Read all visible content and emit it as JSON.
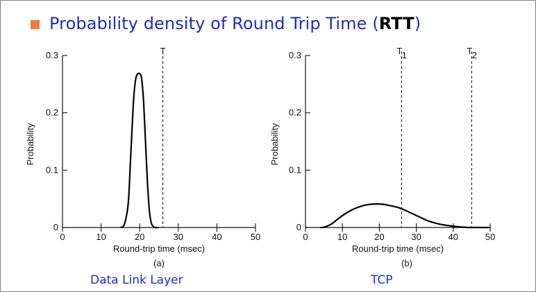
{
  "slide": {
    "title_prefix": "Probability density of Round Trip Time (",
    "title_bold": "RTT",
    "title_suffix": ")",
    "bullet_color": "#f07a3c",
    "title_color": "#1f2dbf"
  },
  "captions": {
    "left": "Data Link Layer",
    "right": "TCP"
  },
  "chart_data": [
    {
      "type": "line",
      "panel_label": "(a)",
      "xlabel": "Round-trip time (msec)",
      "ylabel": "Probability",
      "xlim": [
        0,
        50
      ],
      "ylim": [
        0,
        0.3
      ],
      "xticks": [
        0,
        10,
        20,
        30,
        40,
        50
      ],
      "yticks": [
        0,
        0.1,
        0.2,
        0.3
      ],
      "ytick_labels": [
        "0",
        "0.1",
        "0.2",
        "0.3"
      ],
      "grid": false,
      "series": [
        {
          "x": [
            15,
            16,
            17,
            17.5,
            18,
            18.5,
            19,
            19.5,
            20,
            20.5,
            21,
            21.5,
            22,
            22.5,
            23,
            23.5,
            24,
            25
          ],
          "y": [
            0,
            0.005,
            0.04,
            0.1,
            0.17,
            0.23,
            0.26,
            0.268,
            0.268,
            0.26,
            0.22,
            0.15,
            0.08,
            0.03,
            0.008,
            0.002,
            0,
            0
          ]
        }
      ],
      "reference_lines": [
        {
          "x": 26,
          "label": "T",
          "subscript": ""
        }
      ]
    },
    {
      "type": "line",
      "panel_label": "(b)",
      "xlabel": "Round-trip time (msec)",
      "ylabel": "Probability",
      "xlim": [
        0,
        50
      ],
      "ylim": [
        0,
        0.3
      ],
      "xticks": [
        0,
        10,
        20,
        30,
        40,
        50
      ],
      "yticks": [
        0,
        0.1,
        0.2,
        0.3
      ],
      "ytick_labels": [
        "0",
        "0.1",
        "0.2",
        "0.3"
      ],
      "grid": false,
      "series": [
        {
          "x": [
            4,
            5,
            7,
            9,
            11,
            13,
            15,
            17,
            19,
            21,
            23,
            25,
            27,
            29,
            31,
            33,
            35,
            37,
            39,
            41,
            43,
            45,
            50
          ],
          "y": [
            0,
            0.0005,
            0.006,
            0.016,
            0.025,
            0.032,
            0.037,
            0.04,
            0.041,
            0.0405,
            0.038,
            0.035,
            0.03,
            0.024,
            0.018,
            0.012,
            0.008,
            0.005,
            0.003,
            0.0015,
            0.0005,
            0,
            0
          ]
        }
      ],
      "reference_lines": [
        {
          "x": 26,
          "label": "T",
          "subscript": "1"
        },
        {
          "x": 45,
          "label": "T",
          "subscript": "2"
        }
      ]
    }
  ]
}
